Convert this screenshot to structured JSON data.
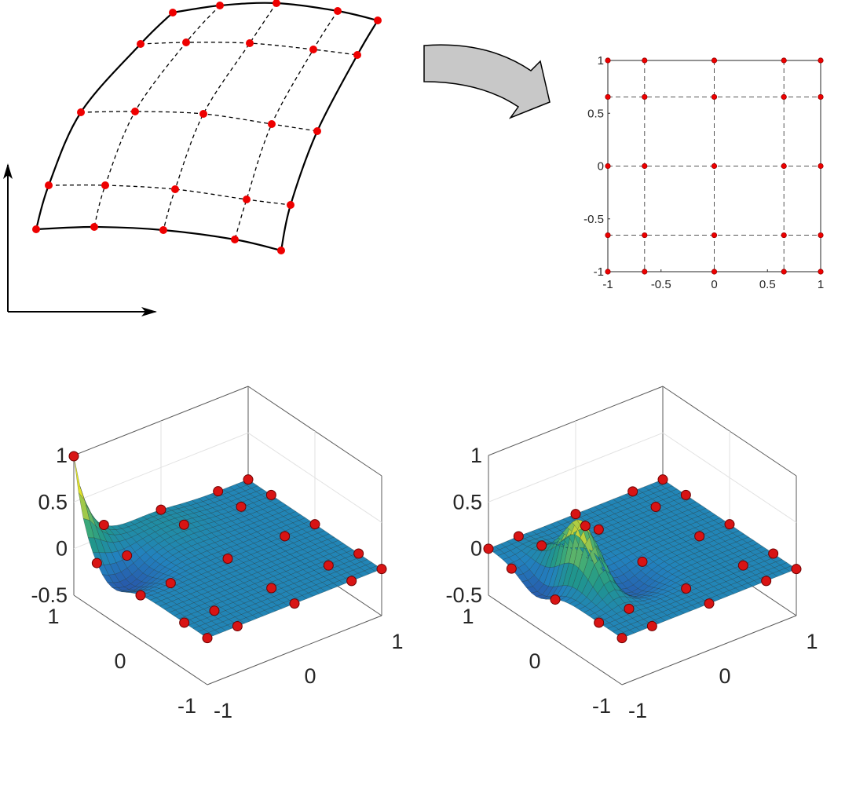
{
  "reference_grid": {
    "x_ticks": [
      "-1",
      "-0.5",
      "0",
      "0.5",
      "1"
    ],
    "y_ticks": [
      "1",
      "0.5",
      "0",
      "-0.5",
      "-1"
    ],
    "node_coords": [
      -1,
      -0.6547,
      0,
      0.6547,
      1
    ],
    "xlim": [
      -1,
      1
    ],
    "ylim": [
      -1,
      1
    ]
  },
  "surface_plots": [
    {
      "z_ticks": [
        "1",
        "0.5",
        "0",
        "-0.5"
      ],
      "y_ticks": [
        "1",
        "0",
        "-1"
      ],
      "x_ticks": [
        "-1",
        "0",
        "1"
      ],
      "zlim": [
        -0.5,
        1
      ]
    },
    {
      "z_ticks": [
        "1",
        "0.5",
        "0",
        "-0.5"
      ],
      "y_ticks": [
        "1",
        "0",
        "-1"
      ],
      "x_ticks": [
        "-1",
        "0",
        "1"
      ],
      "zlim": [
        -0.5,
        1
      ]
    }
  ],
  "colors": {
    "node": "#ee0000",
    "node_stroke": "#990000",
    "surface_low": "#2b3d9e",
    "surface_mid": "#1a9b8a",
    "surface_high": "#f0e020",
    "arrow_fill": "#c8c8c8"
  }
}
